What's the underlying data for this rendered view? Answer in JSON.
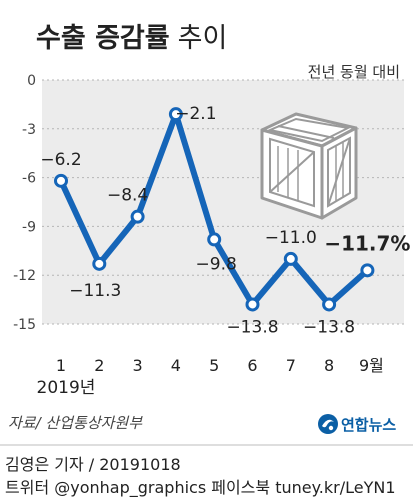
{
  "header": {
    "title_bold": "수출 증감률",
    "title_light": "추이",
    "subtitle": "전년 동월 대비"
  },
  "chart_data": {
    "type": "line",
    "title": "수출 증감률 추이",
    "subtitle": "전년 동월 대비",
    "x_ticks": [
      "1",
      "2",
      "3",
      "4",
      "5",
      "6",
      "7",
      "8",
      "9월"
    ],
    "x_year_label": "2019년",
    "y_ticks": [
      "0",
      "-3",
      "-6",
      "-9",
      "-12",
      "-15"
    ],
    "ylim": [
      -15,
      0
    ],
    "series": [
      {
        "values": [
          -6.2,
          -11.3,
          -8.4,
          -2.1,
          -9.8,
          -13.8,
          -11.0,
          -13.8,
          -11.7
        ],
        "labels": [
          "−6.2",
          "−11.3",
          "−8.4",
          "−2.1",
          "−9.8",
          "−13.8",
          "−11.0",
          "−13.8",
          "−11.7%"
        ],
        "color": "#1565b8",
        "marker_fill": "#ffffff"
      }
    ],
    "grid": "horizontal-dotted",
    "plot_background": "#ececec",
    "last_point_highlighted": true
  },
  "footer": {
    "source": "자료/ 산업통상자원부",
    "logo_text": "연합뉴스",
    "credit_line1": "김영은 기자 / 20191018",
    "credit_line2": "트위터 @yonhap_graphics  페이스북 tuney.kr/LeYN1"
  },
  "colors": {
    "line": "#1565b8",
    "plot_bg": "#ececec",
    "grid": "#b5b5b5",
    "crate": "#9a9a9a",
    "logo": "#0b5fa5"
  },
  "icons": {
    "crate": "shipping-crate-icon",
    "logo": "yonhap-logo-icon"
  }
}
